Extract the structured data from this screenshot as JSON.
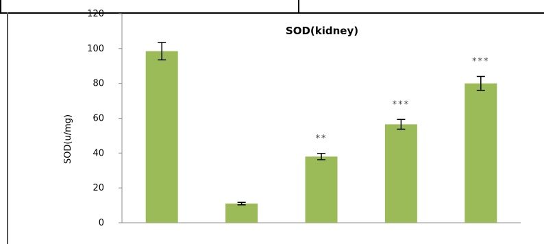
{
  "chart_data": {
    "type": "bar",
    "title": "SOD(kidney)",
    "xlabel": "",
    "ylabel": "SOD(u/mg)",
    "ylim": [
      0,
      120
    ],
    "yticks": [
      "0",
      "20",
      "40",
      "60",
      "80",
      "100",
      "120"
    ],
    "categories": [
      "",
      "",
      "",
      "",
      ""
    ],
    "values": [
      98.5,
      11,
      38,
      56.5,
      80
    ],
    "errors": [
      5,
      0.7,
      1.8,
      2.8,
      4
    ],
    "significance": [
      "",
      "",
      "**",
      "***",
      "***"
    ],
    "grid": false,
    "legend": "none",
    "bar_color": "#9BBB59",
    "error_color": "#000000"
  }
}
